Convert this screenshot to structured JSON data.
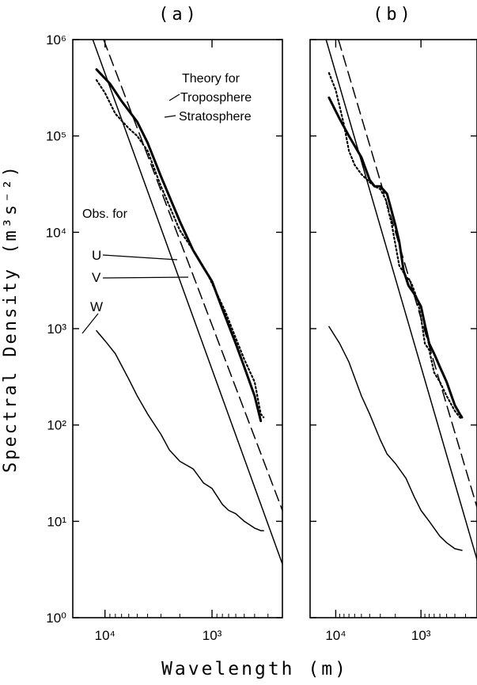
{
  "figure": {
    "ylabel": "Spectral Density (m³s⁻²)",
    "xlabel": "Wavelength (m)"
  },
  "chart_data": [
    {
      "panel_label": "(a)",
      "type": "line",
      "x_scale": "log",
      "y_scale": "log",
      "x_reversed": true,
      "xlim": [
        20000,
        220
      ],
      "ylim": [
        1,
        1000000
      ],
      "x_tick_values": [
        10000,
        1000
      ],
      "x_tick_labels": [
        "10⁴",
        "10³"
      ],
      "y_tick_values": [
        1,
        10,
        100,
        1000,
        10000,
        100000,
        1000000
      ],
      "y_tick_labels": [
        "10⁰",
        "10¹",
        "10²",
        "10³",
        "10⁴",
        "10⁵",
        "10⁶"
      ],
      "annotations": [
        "Theory for",
        "Troposphere",
        "Stratosphere",
        "Obs. for",
        "U",
        "V",
        "W"
      ],
      "series": [
        {
          "name": "Troposphere",
          "style": "solid-thin",
          "x": [
            13000,
            220
          ],
          "y": [
            1000000,
            3.6
          ]
        },
        {
          "name": "Stratosphere",
          "style": "dashed",
          "x": [
            10300,
            220
          ],
          "y": [
            1000000,
            13
          ]
        },
        {
          "name": "U",
          "style": "solid-thick",
          "x": [
            12000,
            9000,
            7000,
            5000,
            4000,
            3000,
            2000,
            1500,
            1200,
            1000,
            800,
            600,
            500,
            400,
            350
          ],
          "y": [
            490000,
            350000,
            230000,
            140000,
            85000,
            38000,
            13000,
            6500,
            4300,
            3100,
            1600,
            700,
            400,
            200,
            110
          ]
        },
        {
          "name": "V",
          "style": "dotted",
          "x": [
            12000,
            10000,
            8000,
            6000,
            5000,
            4000,
            3000,
            2000,
            1400,
            1100,
            900,
            750,
            600,
            500,
            400,
            350,
            330
          ],
          "y": [
            380000,
            280000,
            170000,
            120000,
            100000,
            70000,
            30000,
            10500,
            5800,
            3700,
            2300,
            1500,
            800,
            480,
            280,
            130,
            120
          ]
        },
        {
          "name": "W",
          "style": "solid-thin",
          "x": [
            12000,
            10000,
            8000,
            6000,
            5000,
            4000,
            3000,
            2500,
            2000,
            1500,
            1200,
            1000,
            800,
            700,
            600,
            500,
            400,
            350,
            330
          ],
          "y": [
            950,
            750,
            550,
            300,
            200,
            130,
            80,
            55,
            42,
            35,
            25,
            22,
            15,
            13,
            12,
            10,
            8.5,
            8,
            8
          ]
        }
      ]
    },
    {
      "panel_label": "(b)",
      "type": "line",
      "x_scale": "log",
      "y_scale": "log",
      "x_reversed": true,
      "xlim": [
        20000,
        220
      ],
      "ylim": [
        1,
        1000000
      ],
      "x_tick_values": [
        10000,
        1000
      ],
      "x_tick_labels": [
        "10⁴",
        "10³"
      ],
      "y_tick_values": [
        1,
        10,
        100,
        1000,
        10000,
        100000,
        1000000
      ],
      "series": [
        {
          "name": "Troposphere",
          "style": "solid-thin",
          "x": [
            13000,
            220
          ],
          "y": [
            1000000,
            4
          ]
        },
        {
          "name": "Stratosphere",
          "style": "dashed",
          "x": [
            9300,
            220
          ],
          "y": [
            1000000,
            14
          ]
        },
        {
          "name": "U",
          "style": "solid-thick",
          "x": [
            12000,
            9000,
            7000,
            5000,
            4000,
            3500,
            3000,
            2500,
            2000,
            1800,
            1600,
            1400,
            1200,
            1000,
            900,
            800,
            700,
            600,
            500,
            400,
            350,
            330
          ],
          "y": [
            250000,
            150000,
            100000,
            60000,
            35000,
            30000,
            30000,
            25000,
            12000,
            8000,
            4000,
            2800,
            2300,
            1700,
            1100,
            700,
            550,
            400,
            280,
            160,
            130,
            120
          ]
        },
        {
          "name": "V",
          "style": "dotted",
          "x": [
            12000,
            10000,
            8000,
            7000,
            6000,
            5000,
            4000,
            3500,
            3000,
            2600,
            2200,
            1800,
            1500,
            1300,
            1100,
            1000,
            900,
            800,
            700,
            600,
            500,
            400,
            350,
            330
          ],
          "y": [
            450000,
            300000,
            130000,
            70000,
            50000,
            40000,
            33000,
            30000,
            28000,
            22000,
            12000,
            4500,
            3500,
            3000,
            2000,
            1300,
            700,
            600,
            350,
            280,
            200,
            140,
            120,
            115
          ]
        },
        {
          "name": "W",
          "style": "solid-thin",
          "x": [
            12000,
            9000,
            7000,
            5000,
            4000,
            3000,
            2500,
            2000,
            1500,
            1200,
            1000,
            800,
            600,
            500,
            400,
            330
          ],
          "y": [
            1050,
            700,
            450,
            200,
            130,
            70,
            50,
            40,
            28,
            18,
            13,
            10,
            7,
            6,
            5.2,
            5
          ]
        }
      ]
    }
  ]
}
